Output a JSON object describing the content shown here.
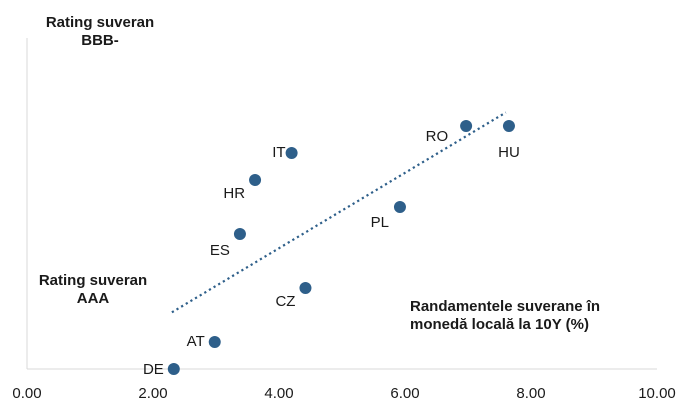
{
  "chart_data": {
    "type": "scatter",
    "xlim": [
      0,
      10
    ],
    "ylim": [
      0,
      10
    ],
    "x_ticks": [
      "0.00",
      "2.00",
      "4.00",
      "6.00",
      "8.00",
      "10.00"
    ],
    "marker_color": "#2e5f8a",
    "trendline": {
      "style": "dotted",
      "color": "#2e5f8a",
      "from": [
        2.3,
        2.1
      ],
      "to": [
        7.6,
        9.5
      ]
    },
    "points": [
      {
        "label": "DE",
        "x": 2.33,
        "y": 0.0
      },
      {
        "label": "AT",
        "x": 2.98,
        "y": 1.0
      },
      {
        "label": "CZ",
        "x": 4.42,
        "y": 3.0
      },
      {
        "label": "ES",
        "x": 3.38,
        "y": 5.0
      },
      {
        "label": "HR",
        "x": 3.62,
        "y": 7.0
      },
      {
        "label": "IT",
        "x": 4.2,
        "y": 8.0
      },
      {
        "label": "PL",
        "x": 5.92,
        "y": 6.0
      },
      {
        "label": "RO",
        "x": 6.97,
        "y": 9.0
      },
      {
        "label": "HU",
        "x": 7.65,
        "y": 9.0
      }
    ]
  },
  "annotations": {
    "top_rating_line1": "Rating suveran",
    "top_rating_line2": "BBB-",
    "bottom_rating_line1": "Rating suveran",
    "bottom_rating_line2": "AAA",
    "x_title_line1": "Randamentele suverane în",
    "x_title_line2": "monedă locală la 10Y (%)"
  }
}
